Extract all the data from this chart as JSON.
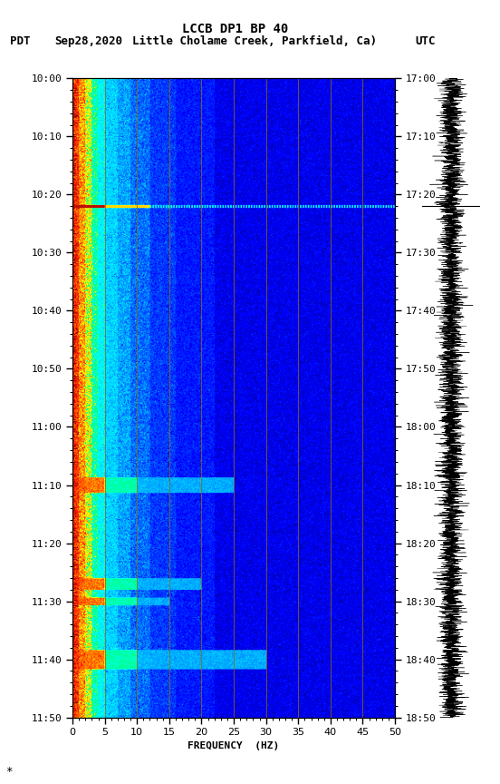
{
  "title1": "LCCB DP1 BP 40",
  "title2_left": "PDT",
  "title2_date": "Sep28,2020",
  "title2_station": "Little Cholame Creek, Parkfield, Ca)",
  "title2_right": "UTC",
  "left_times": [
    "10:00",
    "10:10",
    "10:20",
    "10:30",
    "10:40",
    "10:50",
    "11:00",
    "11:10",
    "11:20",
    "11:30",
    "11:40",
    "11:50"
  ],
  "right_times": [
    "17:00",
    "17:10",
    "17:20",
    "17:30",
    "17:40",
    "17:50",
    "18:00",
    "18:10",
    "18:20",
    "18:30",
    "18:40",
    "18:50"
  ],
  "time_minutes": [
    0,
    10,
    20,
    30,
    40,
    50,
    60,
    70,
    80,
    90,
    100,
    110
  ],
  "freq_min": 0,
  "freq_max": 50,
  "xlabel": "FREQUENCY  (HZ)",
  "background_color": "#ffffff",
  "vertical_grid_freqs": [
    5,
    10,
    15,
    20,
    25,
    30,
    35,
    40,
    45
  ],
  "highlight_line_minute": 22,
  "fig_width": 5.52,
  "fig_height": 8.64,
  "dpi": 100,
  "cmap_colors": [
    [
      0.0,
      "#000050"
    ],
    [
      0.08,
      "#000090"
    ],
    [
      0.15,
      "#0000FF"
    ],
    [
      0.25,
      "#0050FF"
    ],
    [
      0.38,
      "#00CCFF"
    ],
    [
      0.5,
      "#00FFFF"
    ],
    [
      0.62,
      "#00FF80"
    ],
    [
      0.72,
      "#FFFF00"
    ],
    [
      0.82,
      "#FF8000"
    ],
    [
      0.9,
      "#FF2000"
    ],
    [
      1.0,
      "#800000"
    ]
  ]
}
